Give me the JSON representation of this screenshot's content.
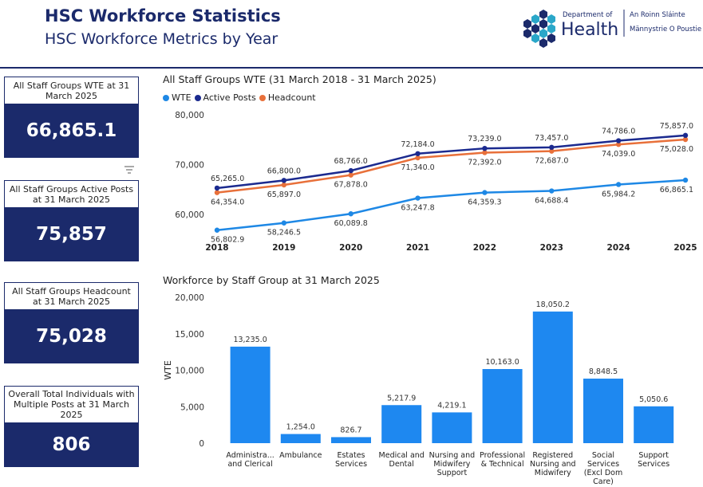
{
  "header": {
    "title": "HSC Workforce Statistics",
    "subtitle": "HSC Workforce Metrics by Year",
    "logo_dept_of": "Department of",
    "logo_health": "Health",
    "logo_irish": "An Roinn Sláinte",
    "logo_ulster_scots": "Männystrie O Poustie"
  },
  "kpis": [
    {
      "label": "All Staff Groups WTE at 31 March 2025",
      "value": "66,865.1"
    },
    {
      "label": "All Staff Groups Active Posts at 31 March 2025",
      "value": "75,857"
    },
    {
      "label": "All Staff Groups Headcount at 31 March 2025",
      "value": "75,028"
    },
    {
      "label": "Overall Total Individuals with Multiple Posts at 31 March 2025",
      "value": "806"
    }
  ],
  "colors": {
    "navy": "#1b2a6b",
    "wte": "#1e88e5",
    "active_posts": "#1b2a8f",
    "headcount": "#e8703a",
    "bar": "#1e88f0"
  },
  "chart_data": [
    {
      "type": "line",
      "title": "All Staff Groups WTE (31 March 2018 - 31 March 2025)",
      "x": [
        "2018",
        "2019",
        "2020",
        "2021",
        "2022",
        "2023",
        "2024",
        "2025"
      ],
      "ylim": [
        55000,
        80000
      ],
      "yticks": [
        60000,
        70000,
        80000
      ],
      "ytick_labels": [
        "60,000",
        "70,000",
        "80,000"
      ],
      "legend_position": "top-left",
      "series": [
        {
          "name": "WTE",
          "values": [
            56802.9,
            58246.5,
            60089.8,
            63247.8,
            64359.3,
            64688.4,
            65984.2,
            66865.1
          ],
          "labels": [
            "56,802.9",
            "58,246.5",
            "60,089.8",
            "63,247.8",
            "64,359.3",
            "64,688.4",
            "65,984.2",
            "66,865.1"
          ]
        },
        {
          "name": "Active Posts",
          "values": [
            65265.0,
            66800.0,
            68766.0,
            72184.0,
            73239.0,
            73457.0,
            74786.0,
            75857.0
          ],
          "labels": [
            "65,265.0",
            "66,800.0",
            "68,766.0",
            "72,184.0",
            "73,239.0",
            "73,457.0",
            "74,786.0",
            "75,857.0"
          ]
        },
        {
          "name": "Headcount",
          "values": [
            64354.0,
            65897.0,
            67878.0,
            71340.0,
            72392.0,
            72687.0,
            74039.0,
            75028.0
          ],
          "labels": [
            "64,354.0",
            "65,897.0",
            "67,878.0",
            "71,340.0",
            "72,392.0",
            "72,687.0",
            "74,039.0",
            "75,028.0"
          ]
        }
      ]
    },
    {
      "type": "bar",
      "title": "Workforce by Staff Group at 31 March 2025",
      "ylabel": "WTE",
      "ylim": [
        0,
        20000
      ],
      "yticks": [
        0,
        5000,
        10000,
        15000,
        20000
      ],
      "ytick_labels": [
        "0",
        "5,000",
        "10,000",
        "15,000",
        "20,000"
      ],
      "categories": [
        [
          "Administra...",
          "and Clerical"
        ],
        [
          "Ambulance"
        ],
        [
          "Estates",
          "Services"
        ],
        [
          "Medical and",
          "Dental"
        ],
        [
          "Nursing and",
          "Midwifery",
          "Support"
        ],
        [
          "Professional",
          "& Technical"
        ],
        [
          "Registered",
          "Nursing and",
          "Midwifery"
        ],
        [
          "Social",
          "Services",
          "(Excl Dom",
          "Care)"
        ],
        [
          "Support",
          "Services"
        ]
      ],
      "values": [
        13235.0,
        1254.0,
        826.7,
        5217.9,
        4219.1,
        10163.0,
        18050.2,
        8848.5,
        5050.6
      ],
      "labels": [
        "13,235.0",
        "1,254.0",
        "826.7",
        "5,217.9",
        "4,219.1",
        "10,163.0",
        "18,050.2",
        "8,848.5",
        "5,050.6"
      ]
    }
  ]
}
